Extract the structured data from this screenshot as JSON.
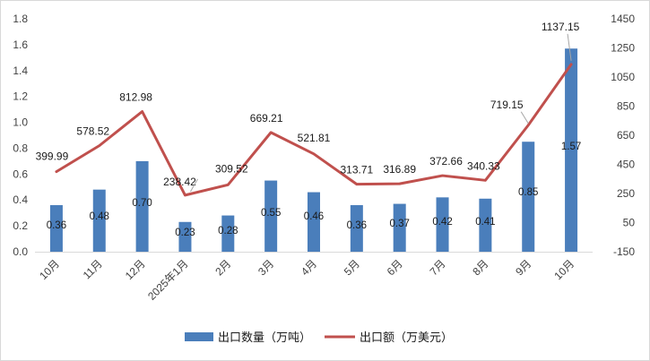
{
  "chart_data": {
    "type": "bar+line",
    "categories": [
      "10月",
      "11月",
      "12月",
      "2025年1月",
      "2月",
      "3月",
      "4月",
      "5月",
      "6月",
      "7月",
      "8月",
      "9月",
      "10月"
    ],
    "series": [
      {
        "name": "出口数量（万吨）",
        "type": "bar",
        "axis": "left",
        "color": "#4a7ebb",
        "values": [
          0.36,
          0.48,
          0.7,
          0.23,
          0.28,
          0.55,
          0.46,
          0.36,
          0.37,
          0.42,
          0.41,
          0.85,
          1.57
        ],
        "labels": [
          "0.36",
          "0.48",
          "0.70",
          "0.23",
          "0.28",
          "0.55",
          "0.46",
          "0.36",
          "0.37",
          "0.42",
          "0.41",
          "0.85",
          "1.57"
        ]
      },
      {
        "name": "出口额（万美元）",
        "type": "line",
        "axis": "right",
        "color": "#c0504d",
        "values": [
          399.99,
          578.52,
          812.98,
          238.42,
          309.52,
          669.21,
          521.81,
          313.71,
          316.89,
          372.66,
          340.33,
          719.15,
          1137.15
        ],
        "labels": [
          "399.99",
          "578.52",
          "812.98",
          "238.42",
          "309.52",
          "669.21",
          "521.81",
          "313.71",
          "316.89",
          "372.66",
          "340.33",
          "719.15",
          "1137.15"
        ]
      }
    ],
    "y_left": {
      "min": 0,
      "max": 1.8,
      "ticks": [
        0,
        0.2,
        0.4,
        0.6,
        0.8,
        1.0,
        1.2,
        1.4,
        1.6,
        1.8
      ],
      "tick_labels": [
        "0.0",
        "0.2",
        "0.4",
        "0.6",
        "0.8",
        "1.0",
        "1.2",
        "1.4",
        "1.6",
        "1.8"
      ]
    },
    "y_right": {
      "min": -150,
      "max": 1450,
      "ticks": [
        -150,
        50,
        250,
        450,
        650,
        850,
        1050,
        1250,
        1450
      ],
      "tick_labels": [
        "-150",
        "50",
        "250",
        "450",
        "650",
        "850",
        "1050",
        "1250",
        "1450"
      ]
    },
    "grid": false,
    "legend_position": "bottom"
  }
}
